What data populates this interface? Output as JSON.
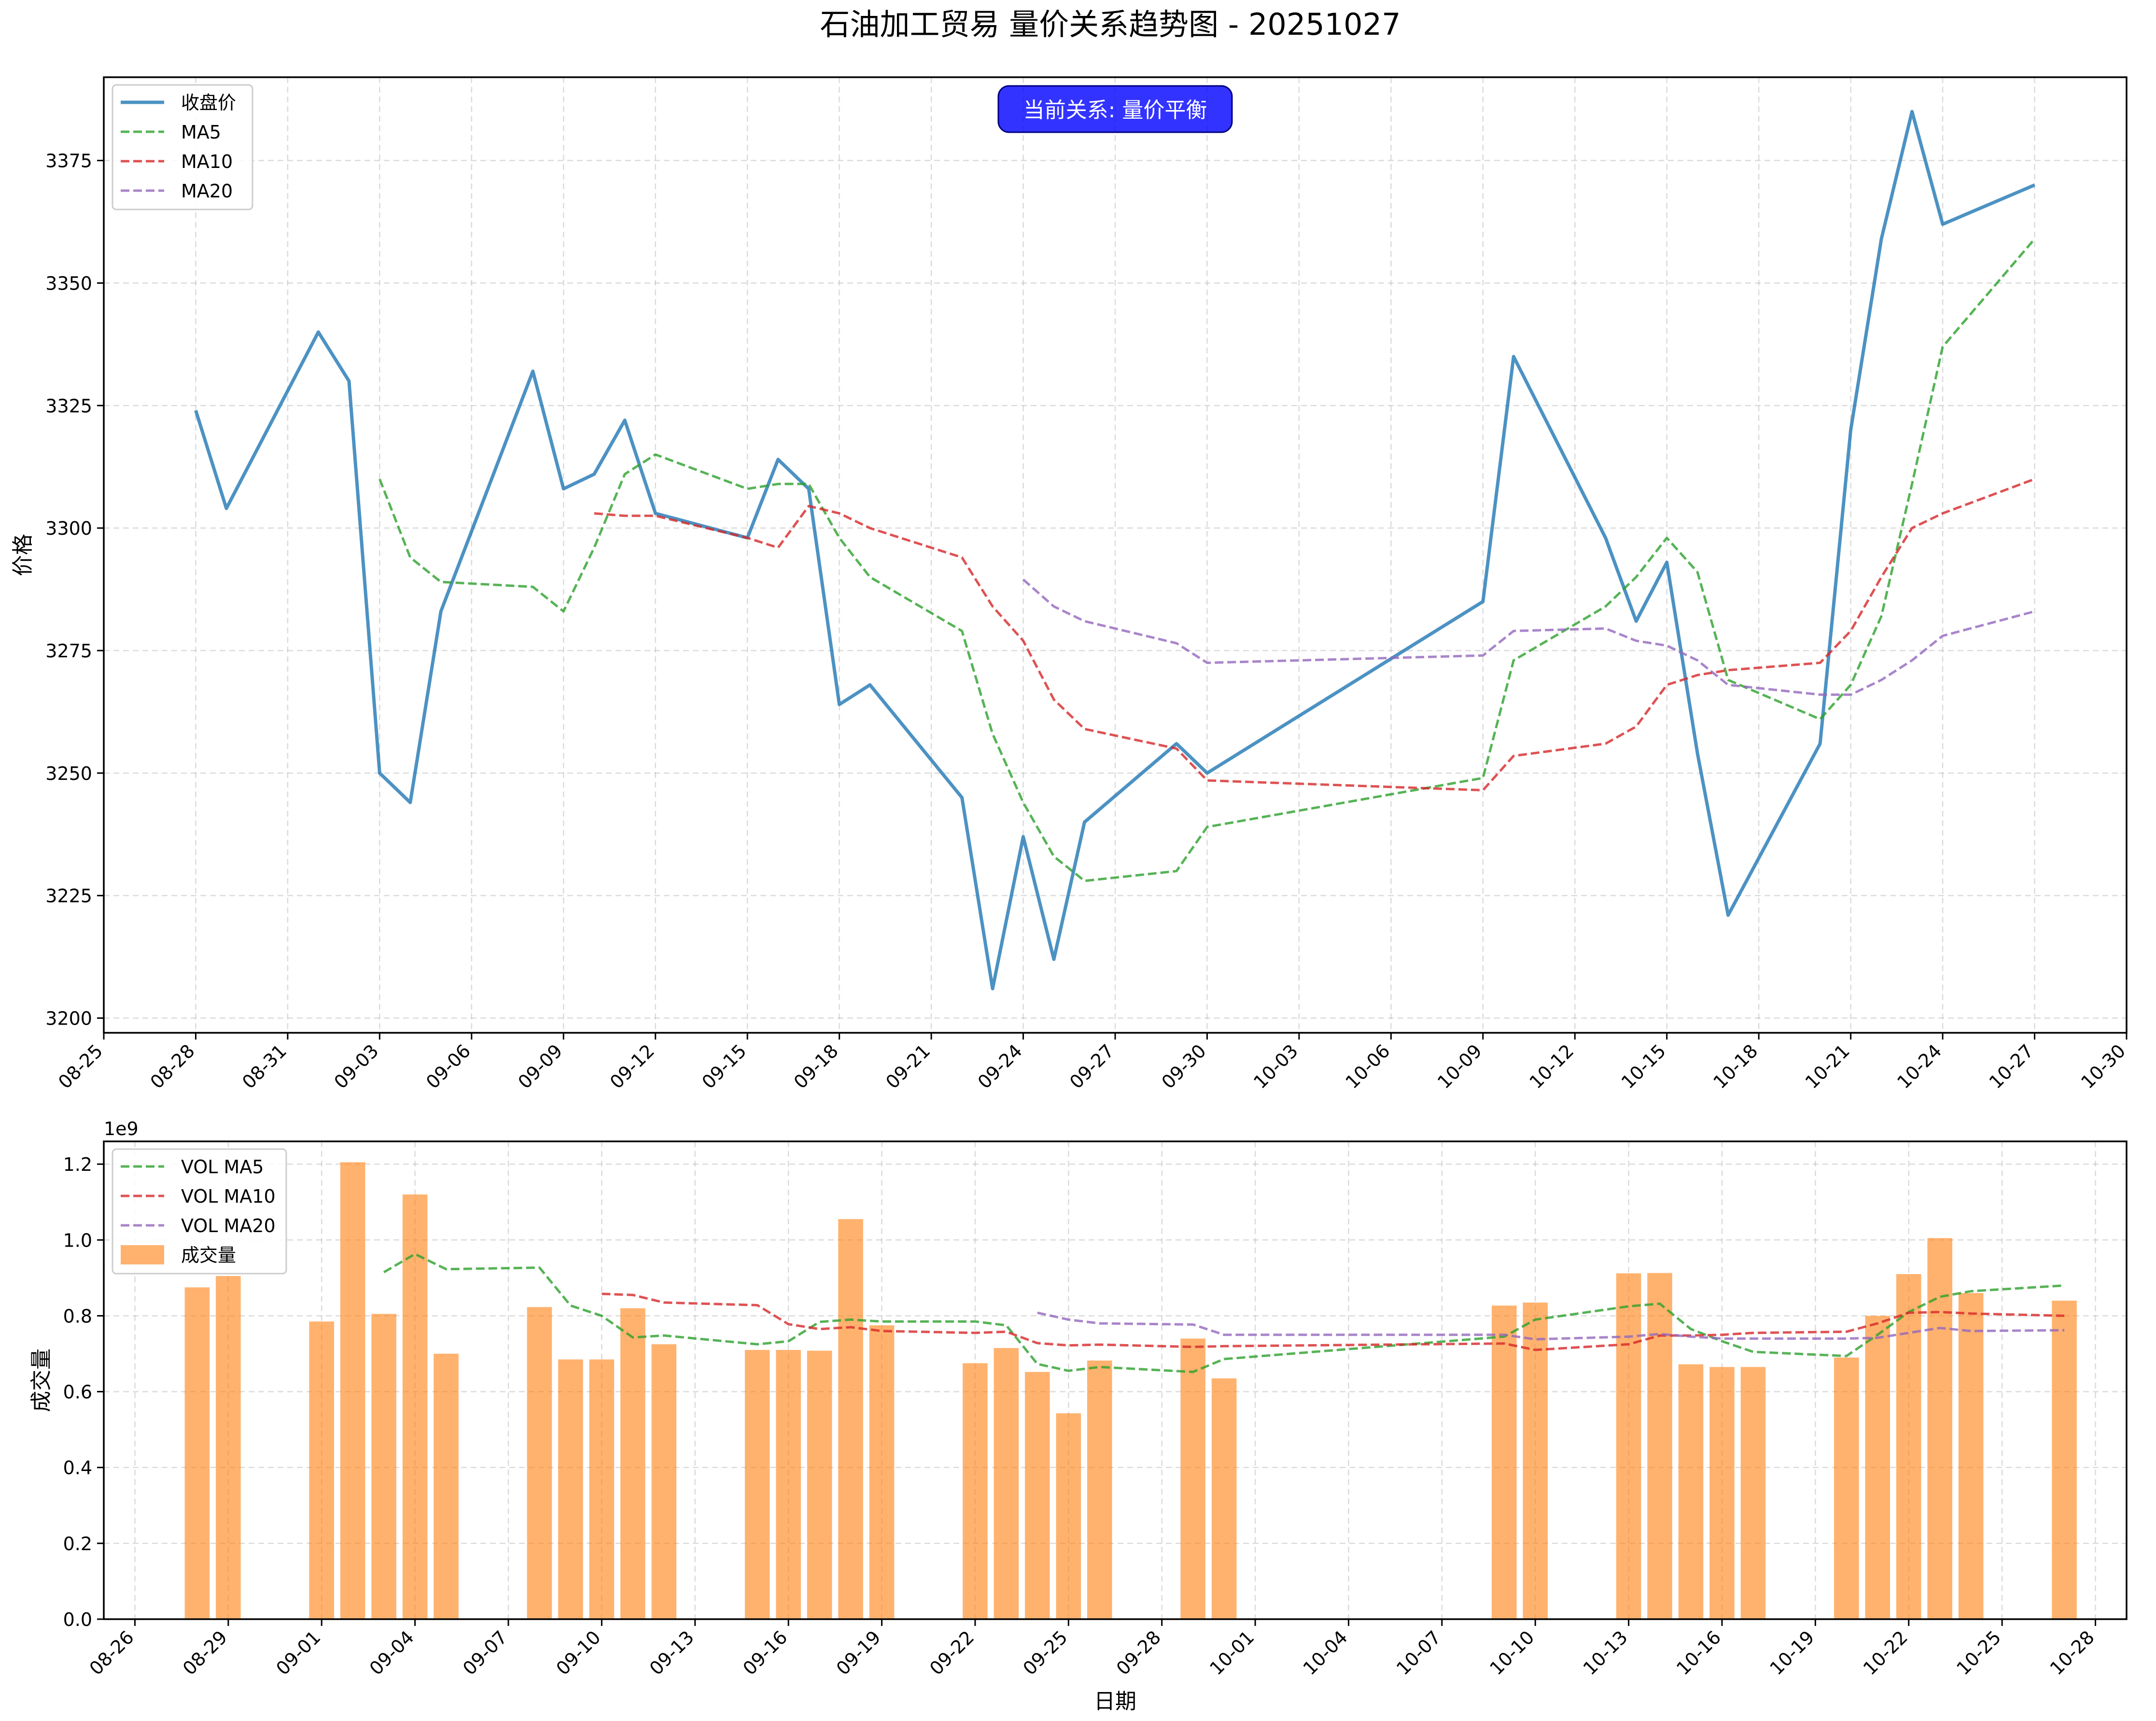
{
  "title": "石油加工贸易 量价关系趋势图 - 20251027",
  "colors": {
    "close": "#1f77b4",
    "ma5": "#2ca02c",
    "ma10": "#d62728",
    "ma20": "#9467bd",
    "volume_bar": "#ff7f0e",
    "badge_bg": "#0000ff",
    "badge_border": "#000080",
    "badge_text": "#ffffff",
    "grid": "#b0b0b0",
    "axis": "#000000"
  },
  "chart_data": [
    {
      "type": "line",
      "name": "price-panel",
      "ylabel": "价格",
      "xlabel": "",
      "xlim": [
        "2025-08-25",
        "2025-10-30"
      ],
      "ylim": [
        3197,
        3392
      ],
      "yticks": [
        3200,
        3225,
        3250,
        3275,
        3300,
        3325,
        3350,
        3375
      ],
      "xticks": [
        "08-25",
        "08-28",
        "08-31",
        "09-03",
        "09-06",
        "09-09",
        "09-12",
        "09-15",
        "09-18",
        "09-21",
        "09-24",
        "09-27",
        "09-30",
        "10-03",
        "10-06",
        "10-09",
        "10-12",
        "10-15",
        "10-18",
        "10-21",
        "10-24",
        "10-27",
        "10-30"
      ],
      "grid": true,
      "legend": "top-left",
      "annotation": "当前关系: 量价平衡",
      "dates": [
        "2025-08-28",
        "2025-08-29",
        "2025-09-01",
        "2025-09-02",
        "2025-09-03",
        "2025-09-04",
        "2025-09-05",
        "2025-09-08",
        "2025-09-09",
        "2025-09-10",
        "2025-09-11",
        "2025-09-12",
        "2025-09-15",
        "2025-09-16",
        "2025-09-17",
        "2025-09-18",
        "2025-09-19",
        "2025-09-22",
        "2025-09-23",
        "2025-09-24",
        "2025-09-25",
        "2025-09-26",
        "2025-09-29",
        "2025-09-30",
        "2025-10-09",
        "2025-10-10",
        "2025-10-13",
        "2025-10-14",
        "2025-10-15",
        "2025-10-16",
        "2025-10-17",
        "2025-10-20",
        "2025-10-21",
        "2025-10-22",
        "2025-10-23",
        "2025-10-24",
        "2025-10-27"
      ],
      "series": [
        {
          "name": "收盘价",
          "key": "close",
          "style": "solid",
          "values": [
            3324,
            3304,
            3340,
            3330,
            3250,
            3244,
            3283,
            3332,
            3308,
            3311,
            3322,
            3303,
            3298,
            3314,
            3308,
            3264,
            3268,
            3245,
            3206,
            3237,
            3212,
            3240,
            3256,
            3250,
            3285,
            3335,
            3298,
            3281,
            3293,
            3254,
            3221,
            3256,
            3320,
            3359,
            3385,
            3362,
            3370
          ]
        },
        {
          "name": "MA5",
          "key": "ma5",
          "style": "dashed",
          "values": [
            null,
            null,
            null,
            null,
            3310,
            3294,
            3289,
            3288,
            3283,
            3296,
            3311,
            3315,
            3308,
            3309,
            3309,
            3298,
            3290,
            3279,
            3258,
            3244,
            3233,
            3228,
            3230,
            3239,
            3249,
            3273,
            3284,
            3290,
            3298,
            3291,
            3269,
            3261,
            3268,
            3282,
            3309,
            3337,
            3359
          ]
        },
        {
          "name": "MA10",
          "key": "ma10",
          "style": "dashed",
          "values": [
            null,
            null,
            null,
            null,
            null,
            null,
            null,
            null,
            null,
            3303,
            3302.5,
            3302.5,
            3298,
            3296,
            3304.5,
            3303,
            3300,
            3294,
            3284,
            3277,
            3265,
            3259,
            3255,
            3248.5,
            3246.5,
            3253.5,
            3256,
            3259.5,
            3268,
            3270,
            3271,
            3272.5,
            3279,
            3290,
            3300,
            3303,
            3310
          ]
        },
        {
          "name": "MA20",
          "key": "ma20",
          "style": "dashed",
          "values": [
            null,
            null,
            null,
            null,
            null,
            null,
            null,
            null,
            null,
            null,
            null,
            null,
            null,
            null,
            null,
            null,
            null,
            null,
            null,
            3289.5,
            3284,
            3281,
            3276.5,
            3272.5,
            3274,
            3279,
            3279.5,
            3277,
            3276,
            3273,
            3268,
            3266,
            3266,
            3269,
            3273,
            3278,
            3283
          ]
        }
      ]
    },
    {
      "type": "bar",
      "name": "volume-panel",
      "ylabel": "成交量",
      "xlabel": "日期",
      "offset_label": "1e9",
      "xlim": [
        "2025-08-25",
        "2025-10-29"
      ],
      "ylim": [
        0,
        1.26
      ],
      "yticks": [
        0.0,
        0.2,
        0.4,
        0.6,
        0.8,
        1.0,
        1.2
      ],
      "ytick_labels": [
        "0.0",
        "0.2",
        "0.4",
        "0.6",
        "0.8",
        "1.0",
        "1.2"
      ],
      "xticks": [
        "08-26",
        "08-29",
        "09-01",
        "09-04",
        "09-07",
        "09-10",
        "09-13",
        "09-16",
        "09-19",
        "09-22",
        "09-25",
        "09-28",
        "10-01",
        "10-04",
        "10-07",
        "10-10",
        "10-13",
        "10-16",
        "10-19",
        "10-22",
        "10-25",
        "10-28"
      ],
      "grid": true,
      "legend": "top-left",
      "dates": [
        "2025-08-28",
        "2025-08-29",
        "2025-09-01",
        "2025-09-02",
        "2025-09-03",
        "2025-09-04",
        "2025-09-05",
        "2025-09-08",
        "2025-09-09",
        "2025-09-10",
        "2025-09-11",
        "2025-09-12",
        "2025-09-15",
        "2025-09-16",
        "2025-09-17",
        "2025-09-18",
        "2025-09-19",
        "2025-09-22",
        "2025-09-23",
        "2025-09-24",
        "2025-09-25",
        "2025-09-26",
        "2025-09-29",
        "2025-09-30",
        "2025-10-09",
        "2025-10-10",
        "2025-10-13",
        "2025-10-14",
        "2025-10-15",
        "2025-10-16",
        "2025-10-17",
        "2025-10-20",
        "2025-10-21",
        "2025-10-22",
        "2025-10-23",
        "2025-10-24",
        "2025-10-27"
      ],
      "volume": [
        0.875,
        0.905,
        0.785,
        1.205,
        0.805,
        1.12,
        0.7,
        0.823,
        0.685,
        0.685,
        0.82,
        0.725,
        0.71,
        0.71,
        0.708,
        1.055,
        0.775,
        0.675,
        0.715,
        0.652,
        0.543,
        0.682,
        0.74,
        0.635,
        0.827,
        0.835,
        0.912,
        0.913,
        0.672,
        0.665,
        0.665,
        0.69,
        0.8,
        0.91,
        1.005,
        0.86,
        0.84
      ],
      "series": [
        {
          "name": "VOL MA5",
          "key": "ma5",
          "style": "dashed",
          "values": [
            null,
            null,
            null,
            null,
            0.915,
            0.963,
            0.923,
            0.927,
            0.827,
            0.8,
            0.743,
            0.748,
            0.725,
            0.733,
            0.784,
            0.79,
            0.785,
            0.785,
            0.775,
            0.673,
            0.655,
            0.665,
            0.652,
            0.686,
            0.745,
            0.79,
            0.825,
            0.832,
            0.765,
            0.733,
            0.705,
            0.694,
            0.75,
            0.81,
            0.85,
            0.865,
            0.88
          ]
        },
        {
          "name": "VOL MA10",
          "key": "ma10",
          "style": "dashed",
          "values": [
            null,
            null,
            null,
            null,
            null,
            null,
            null,
            null,
            null,
            0.858,
            0.855,
            0.835,
            0.828,
            0.778,
            0.765,
            0.77,
            0.76,
            0.755,
            0.758,
            0.728,
            0.722,
            0.724,
            0.718,
            0.72,
            0.727,
            0.71,
            0.725,
            0.748,
            0.748,
            0.75,
            0.755,
            0.758,
            0.78,
            0.808,
            0.81,
            0.806,
            0.8
          ]
        },
        {
          "name": "VOL MA20",
          "key": "ma20",
          "style": "dashed",
          "values": [
            null,
            null,
            null,
            null,
            null,
            null,
            null,
            null,
            null,
            null,
            null,
            null,
            null,
            null,
            null,
            null,
            null,
            null,
            null,
            0.808,
            0.79,
            0.78,
            0.777,
            0.75,
            0.75,
            0.738,
            0.745,
            0.752,
            0.745,
            0.74,
            0.74,
            0.74,
            0.742,
            0.755,
            0.768,
            0.76,
            0.762
          ]
        }
      ],
      "bar_legend": "成交量"
    }
  ]
}
